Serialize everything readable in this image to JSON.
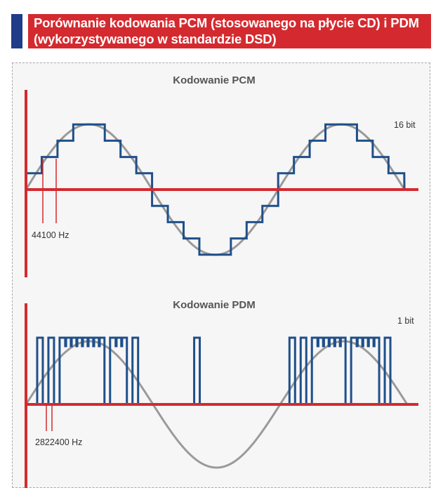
{
  "header": {
    "title": "Porównanie kodowania PCM (stosowanego na płycie CD) i PDM (wykorzystywanego w standardzie DSD)"
  },
  "pcm": {
    "title": "Kodowanie PCM",
    "bit_label": "16 bit",
    "freq_label": "44100 Hz"
  },
  "pdm": {
    "title": "Kodowanie PDM",
    "bit_label": "1 bit",
    "freq_label": "2822400 Hz"
  },
  "colors": {
    "red": "#d42a2f",
    "blue": "#1f4f8a",
    "sine": "#9a9a9a",
    "header_blue": "#1f3c88"
  }
}
